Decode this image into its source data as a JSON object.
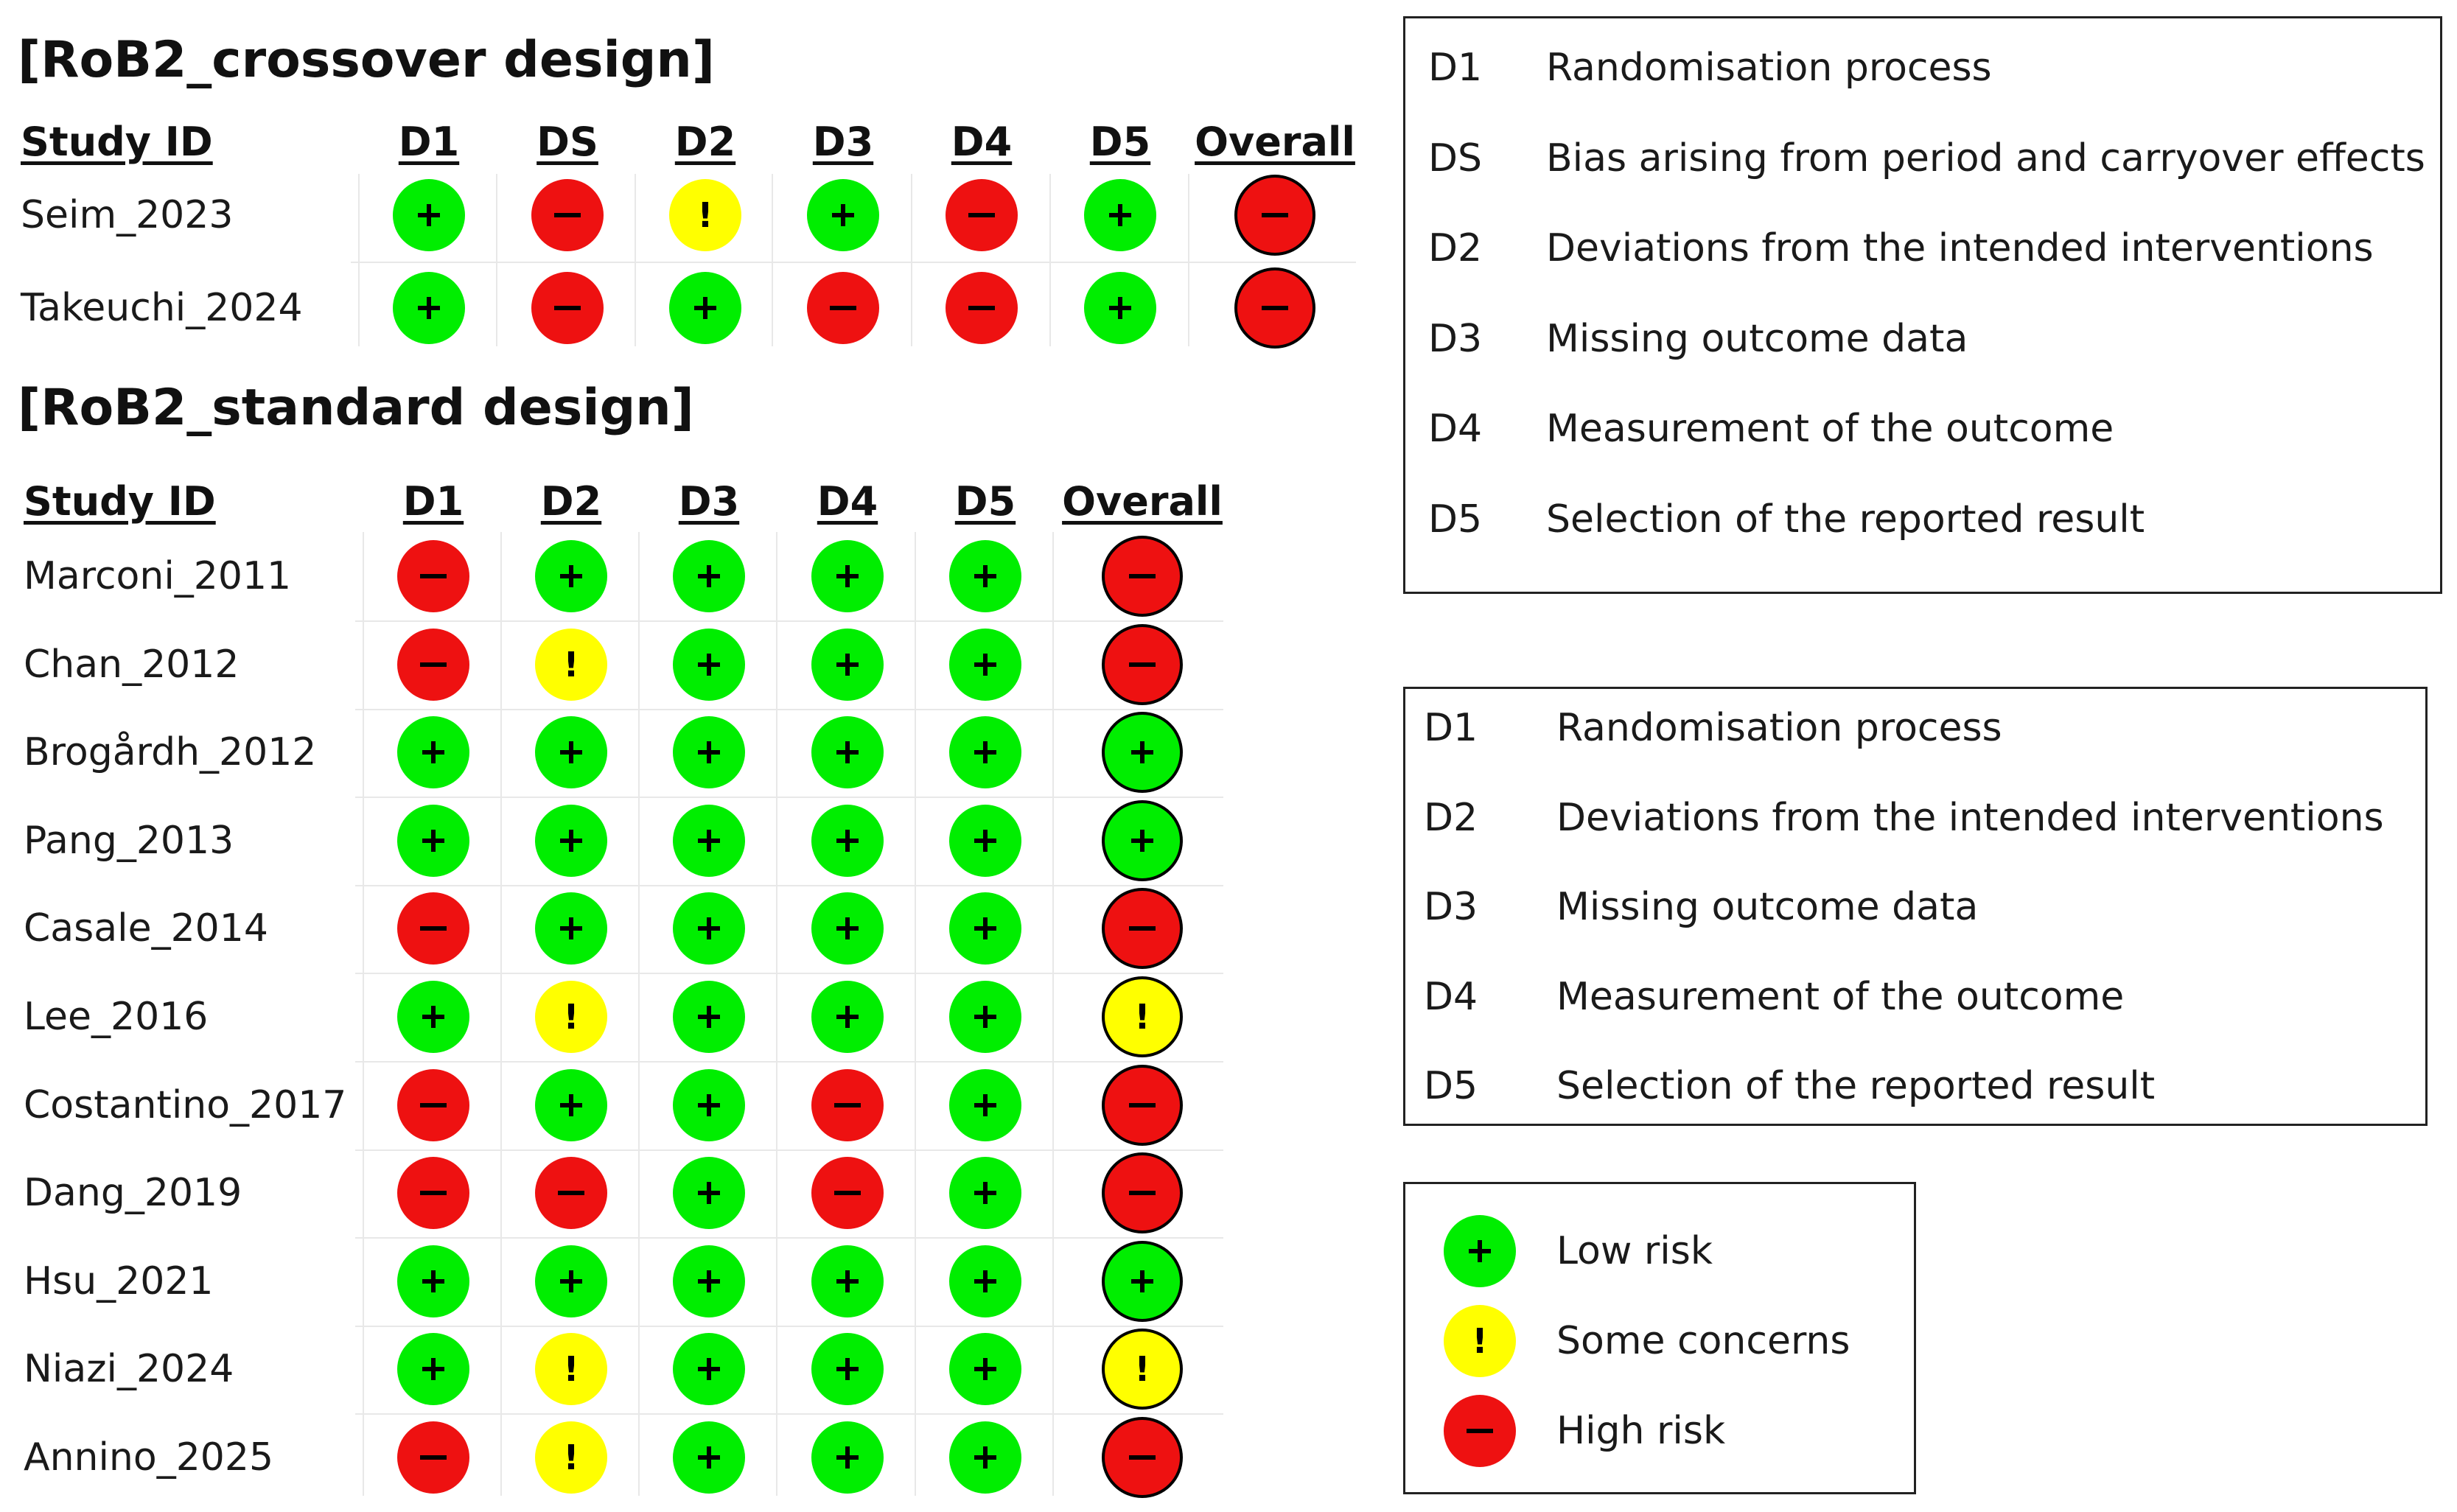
{
  "colors": {
    "low": "#00ee00",
    "some": "#ffff00",
    "high": "#ee1111"
  },
  "crossover": {
    "title": "[RoB2_crossover design]",
    "study_header": "Study ID",
    "columns": [
      "D1",
      "DS",
      "D2",
      "D3",
      "D4",
      "D5",
      "Overall"
    ],
    "rows": [
      {
        "study": "Seim_2023",
        "ratings": [
          "low",
          "high",
          "some",
          "low",
          "high",
          "low",
          "high"
        ]
      },
      {
        "study": "Takeuchi_2024",
        "ratings": [
          "low",
          "high",
          "low",
          "high",
          "high",
          "low",
          "high"
        ]
      }
    ]
  },
  "standard": {
    "title": "[RoB2_standard design]",
    "study_header": "Study ID",
    "columns": [
      "D1",
      "D2",
      "D3",
      "D4",
      "D5",
      "Overall"
    ],
    "rows": [
      {
        "study": "Marconi_2011",
        "ratings": [
          "high",
          "low",
          "low",
          "low",
          "low",
          "high"
        ]
      },
      {
        "study": "Chan_2012",
        "ratings": [
          "high",
          "some",
          "low",
          "low",
          "low",
          "high"
        ]
      },
      {
        "study": "Brogårdh_2012",
        "ratings": [
          "low",
          "low",
          "low",
          "low",
          "low",
          "low"
        ]
      },
      {
        "study": "Pang_2013",
        "ratings": [
          "low",
          "low",
          "low",
          "low",
          "low",
          "low"
        ]
      },
      {
        "study": "Casale_2014",
        "ratings": [
          "high",
          "low",
          "low",
          "low",
          "low",
          "high"
        ]
      },
      {
        "study": "Lee_2016",
        "ratings": [
          "low",
          "some",
          "low",
          "low",
          "low",
          "some"
        ]
      },
      {
        "study": "Costantino_2017",
        "ratings": [
          "high",
          "low",
          "low",
          "high",
          "low",
          "high"
        ]
      },
      {
        "study": "Dang_2019",
        "ratings": [
          "high",
          "high",
          "low",
          "high",
          "low",
          "high"
        ]
      },
      {
        "study": "Hsu_2021",
        "ratings": [
          "low",
          "low",
          "low",
          "low",
          "low",
          "low"
        ]
      },
      {
        "study": "Niazi_2024",
        "ratings": [
          "low",
          "some",
          "low",
          "low",
          "low",
          "some"
        ]
      },
      {
        "study": "Annino_2025",
        "ratings": [
          "high",
          "some",
          "low",
          "low",
          "low",
          "high"
        ]
      }
    ]
  },
  "legend_crossover": [
    {
      "code": "D1",
      "text": "Randomisation process"
    },
    {
      "code": "DS",
      "text": "Bias arising from period and carryover effects"
    },
    {
      "code": "D2",
      "text": "Deviations from the intended interventions"
    },
    {
      "code": "D3",
      "text": "Missing outcome data"
    },
    {
      "code": "D4",
      "text": "Measurement of the outcome"
    },
    {
      "code": "D5",
      "text": "Selection of the reported result"
    }
  ],
  "legend_standard": [
    {
      "code": "D1",
      "text": "Randomisation process"
    },
    {
      "code": "D2",
      "text": "Deviations from the intended interventions"
    },
    {
      "code": "D3",
      "text": "Missing outcome data"
    },
    {
      "code": "D4",
      "text": "Measurement of the outcome"
    },
    {
      "code": "D5",
      "text": "Selection of the reported result"
    }
  ],
  "judgement_legend": [
    {
      "level": "low",
      "label": "Low risk"
    },
    {
      "level": "some",
      "label": "Some concerns"
    },
    {
      "level": "high",
      "label": "High risk"
    }
  ]
}
